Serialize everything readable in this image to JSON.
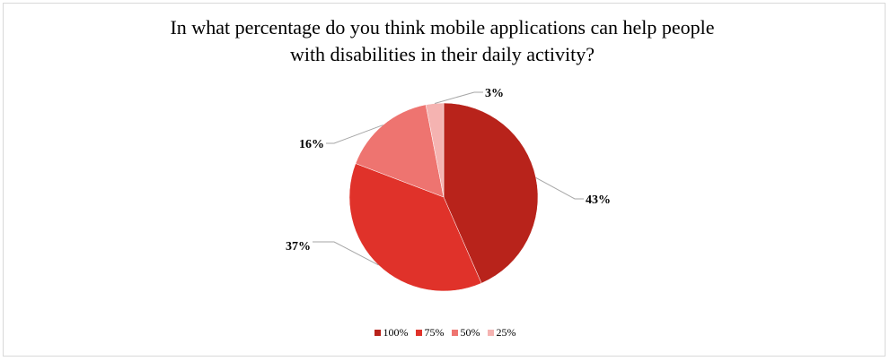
{
  "chart_data": {
    "type": "pie",
    "title_lines": [
      "In what percentage do you think mobile applications can help people",
      "with disabilities in their daily activity?"
    ],
    "categories": [
      "100%",
      "75%",
      "50%",
      "25%"
    ],
    "values": [
      43,
      37,
      16,
      3
    ],
    "data_labels": [
      "43%",
      "37%",
      "16%",
      "3%"
    ],
    "colors": [
      "#b8231b",
      "#e0322a",
      "#ee7470",
      "#f5b3b1"
    ],
    "legend_position": "bottom",
    "start_angle_deg": 0,
    "direction": "clockwise"
  }
}
